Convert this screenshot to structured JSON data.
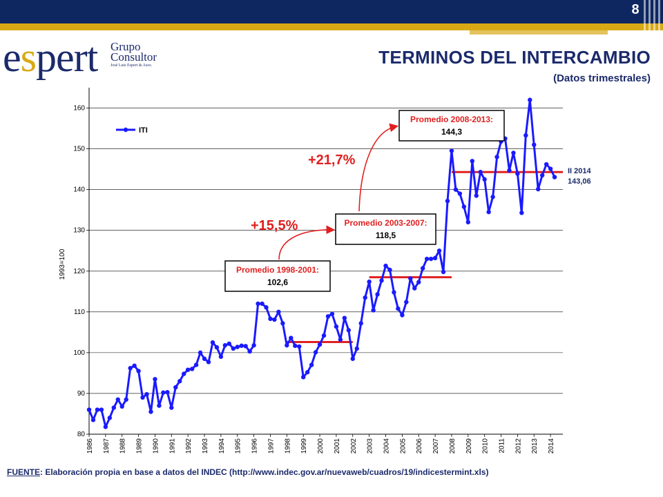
{
  "header": {
    "page_number": "8",
    "title": "TERMINOS DEL INTERCAMBIO",
    "subtitle": "(Datos trimestrales)"
  },
  "logo": {
    "word_pre": "e",
    "word_s": "s",
    "word_post": "pert",
    "line1": "Grupo",
    "line2": "Consultor",
    "line3": "José Luis Espert & Asoc."
  },
  "source": {
    "label": "FUENTE",
    "text": ": Elaboración propia en base a datos del INDEC (http://www.indec.gov.ar/nuevaweb/cuadros/19/indicestermint.xls)"
  },
  "colors": {
    "navy": "#0e2760",
    "gold": "#d9a915",
    "series": "#1a1aff",
    "average_line": "#e02020",
    "annotation_red": "#e02020"
  },
  "chart_data": {
    "type": "line",
    "ylabel": "1993=100",
    "xlabel": "",
    "ylim": [
      80,
      165
    ],
    "yticks": [
      80,
      90,
      100,
      110,
      120,
      130,
      140,
      150,
      160
    ],
    "xrange": [
      1986,
      2014.75
    ],
    "xticks": [
      "1986",
      "1987",
      "1988",
      "1989",
      "1990",
      "1991",
      "1992",
      "1993",
      "1994",
      "1995",
      "1996",
      "1997",
      "1998",
      "1999",
      "2000",
      "2001",
      "2002",
      "2003",
      "2004",
      "2005",
      "2006",
      "2007",
      "2008",
      "2009",
      "2010",
      "2011",
      "2012",
      "2013",
      "2014"
    ],
    "grid": true,
    "legend": {
      "position": "top-left",
      "entries": [
        "ITI"
      ]
    },
    "series": [
      {
        "name": "ITI",
        "start": 1986,
        "frequency": "quarterly",
        "values": [
          86,
          83.5,
          86,
          86,
          81.8,
          84,
          86.5,
          88.5,
          86.8,
          88.5,
          96.2,
          96.8,
          95.5,
          89,
          89.8,
          85.5,
          93.5,
          87,
          90.2,
          90.3,
          86.5,
          91.5,
          93,
          94.8,
          95.8,
          96,
          97,
          100,
          98.5,
          97.7,
          102.5,
          101.3,
          99,
          101.8,
          102.2,
          101,
          101.4,
          101.7,
          101.6,
          100.3,
          101.8,
          112,
          112,
          111.1,
          108.3,
          108.1,
          110,
          107.2,
          101.8,
          103.6,
          101.7,
          101.5,
          94,
          95.2,
          97,
          100.1,
          102,
          104.2,
          108.9,
          109.5,
          106.4,
          103.2,
          108.5,
          105.5,
          98.5,
          101,
          107.2,
          113.5,
          117.4,
          110.4,
          114.3,
          117.7,
          121.3,
          120.3,
          114.8,
          110.8,
          109.2,
          112.4,
          118.2,
          115.8,
          117.3,
          120.7,
          123,
          123,
          123.2,
          125,
          119.8,
          137.2,
          149.5,
          140,
          139,
          135.8,
          132,
          147,
          138.5,
          144.3,
          142.5,
          134.5,
          138.2,
          148,
          151.8,
          152.5,
          144.7,
          149,
          143.9,
          134.3,
          153.3,
          162,
          151,
          140.1,
          143.5,
          146.2,
          145.1,
          143.06
        ]
      }
    ],
    "averages": [
      {
        "label_line1": "Promedio 1998-2001:",
        "label_line2": "102,6",
        "value": 102.6,
        "from": 1998,
        "to": 2002
      },
      {
        "label_line1": "Promedio 2003-2007:",
        "label_line2": "118,5",
        "value": 118.5,
        "from": 2003,
        "to": 2008
      },
      {
        "label_line1": "Promedio 2008-2013:",
        "label_line2": "144,3",
        "value": 144.3,
        "from": 2008,
        "to": 2014.75
      }
    ],
    "annotations": {
      "growth1": "+15,5%",
      "growth2": "+21,7%",
      "last_label_line1": "II 2014",
      "last_label_line2": "143,06"
    }
  }
}
